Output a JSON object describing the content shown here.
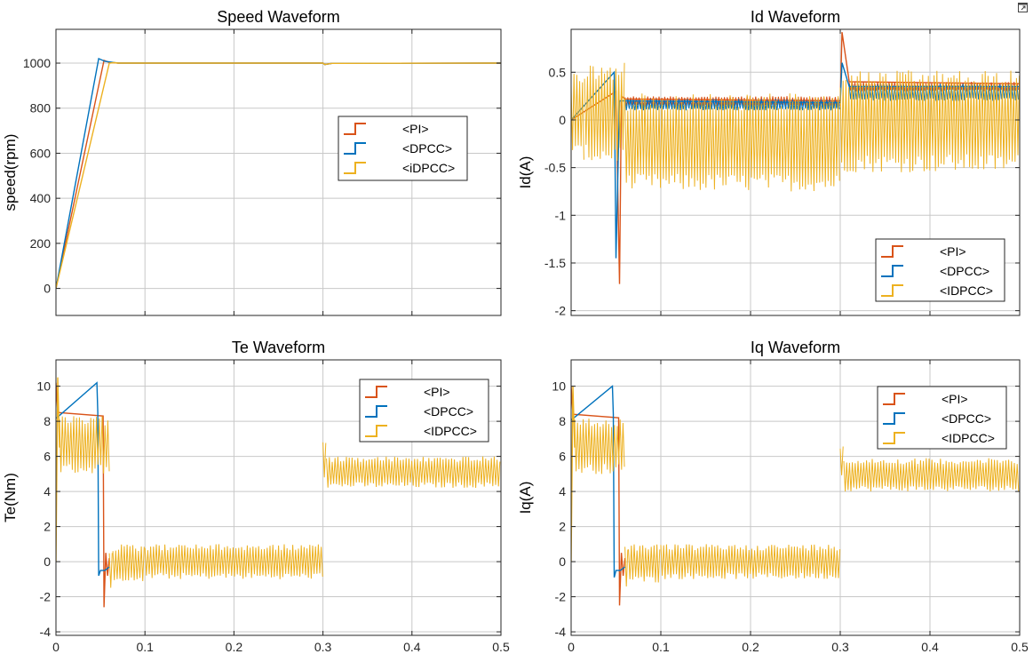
{
  "window": {
    "undock_icon": "undock-icon"
  },
  "colors": {
    "PI": "#D95319",
    "DPCC": "#0072BD",
    "IDPCC": "#EDB120",
    "grid": "#c8c8c8",
    "axis": "#262626"
  },
  "chart_data": [
    {
      "id": "speed",
      "type": "line",
      "title": "Speed Waveform",
      "xlabel": "",
      "ylabel": "speed(rpm)",
      "xlim": [
        0,
        0.5
      ],
      "ylim": [
        -120,
        1150
      ],
      "xticks": [
        0,
        0.1,
        0.2,
        0.3,
        0.4,
        0.5
      ],
      "xtick_labels": [],
      "yticks": [
        0,
        200,
        400,
        600,
        800,
        1000
      ],
      "ytick_labels": [
        "0",
        "200",
        "400",
        "600",
        "800",
        "1000"
      ],
      "legend": {
        "position": "center-right",
        "entries": [
          "<PI>",
          "<DPCC>",
          "<iDPCC>"
        ]
      },
      "series": [
        {
          "name": "<PI>",
          "color_key": "PI",
          "x": [
            0,
            0.054,
            0.06,
            0.07,
            0.3,
            0.302,
            0.31,
            0.5
          ],
          "y": [
            0,
            1012,
            1003,
            1000,
            1000,
            994,
            999,
            1000
          ]
        },
        {
          "name": "<DPCC>",
          "color_key": "DPCC",
          "x": [
            0,
            0.048,
            0.055,
            0.07,
            0.3,
            0.302,
            0.31,
            0.5
          ],
          "y": [
            0,
            1020,
            1008,
            1000,
            1000,
            994,
            999,
            1000
          ]
        },
        {
          "name": "<iDPCC>",
          "color_key": "IDPCC",
          "x": [
            0,
            0.06,
            0.065,
            0.07,
            0.3,
            0.302,
            0.31,
            0.5
          ],
          "y": [
            0,
            1000,
            1002,
            1000,
            1000,
            994,
            999,
            1000
          ]
        }
      ]
    },
    {
      "id": "id",
      "type": "line",
      "title": "Id Waveform",
      "xlabel": "",
      "ylabel": "Id(A)",
      "xlim": [
        0,
        0.5
      ],
      "ylim": [
        -2.05,
        0.95
      ],
      "xticks": [
        0,
        0.1,
        0.2,
        0.3,
        0.4,
        0.5
      ],
      "xtick_labels": [],
      "yticks": [
        -2,
        -1.5,
        -1,
        -0.5,
        0,
        0.5
      ],
      "ytick_labels": [
        "-2",
        "-1.5",
        "-1",
        "-0.5",
        "0",
        "0.5"
      ],
      "legend": {
        "position": "bottom-right",
        "entries": [
          "<PI>",
          "<DPCC>",
          "<IDPCC>"
        ]
      },
      "series": [
        {
          "name": "<PI>",
          "color_key": "PI",
          "x": [
            0,
            0.05,
            0.054,
            0.056,
            0.06,
            0.3,
            0.302,
            0.31,
            0.5
          ],
          "y": [
            0,
            0.3,
            -1.72,
            0.25,
            0.22,
            0.2,
            0.92,
            0.4,
            0.38
          ],
          "band": [
            [
              0.06,
              0.3,
              0.14,
              0.25
            ],
            [
              0.31,
              0.5,
              0.3,
              0.4
            ]
          ]
        },
        {
          "name": "<DPCC>",
          "color_key": "DPCC",
          "x": [
            0,
            0.048,
            0.05,
            0.054,
            0.06,
            0.3,
            0.302,
            0.31,
            0.5
          ],
          "y": [
            0,
            0.5,
            -1.45,
            0.2,
            0.2,
            0.18,
            0.6,
            0.35,
            0.35
          ],
          "band": [
            [
              0.06,
              0.3,
              0.1,
              0.22
            ],
            [
              0.31,
              0.5,
              0.2,
              0.38
            ]
          ]
        },
        {
          "name": "<IDPCC>",
          "color_key": "IDPCC",
          "x": [
            0,
            0.5
          ],
          "y": [
            0,
            0
          ],
          "band": [
            [
              0,
              0.015,
              -0.42,
              0.52
            ],
            [
              0.015,
              0.06,
              -0.45,
              0.6
            ],
            [
              0.06,
              0.3,
              -0.75,
              0.28
            ],
            [
              0.3,
              0.5,
              -0.55,
              0.52
            ]
          ]
        }
      ]
    },
    {
      "id": "te",
      "type": "line",
      "title": "Te Waveform",
      "xlabel": "",
      "ylabel": "Te(Nm)",
      "xlim": [
        0,
        0.5
      ],
      "ylim": [
        -4.2,
        11.5
      ],
      "xticks": [
        0,
        0.1,
        0.2,
        0.3,
        0.4,
        0.5
      ],
      "xtick_labels": [
        "0",
        "0.1",
        "0.2",
        "0.3",
        "0.4",
        "0.5"
      ],
      "yticks": [
        -4,
        -2,
        0,
        2,
        4,
        6,
        8,
        10
      ],
      "ytick_labels": [
        "-4",
        "-2",
        "0",
        "2",
        "4",
        "6",
        "8",
        "10"
      ],
      "legend": {
        "position": "top-right",
        "entries": [
          "<PI>",
          "<DPCC>",
          "<IDPCC>"
        ]
      },
      "series": [
        {
          "name": "<PI>",
          "color_key": "PI",
          "x": [
            0,
            0.002,
            0.053,
            0.054,
            0.056,
            0.058,
            0.06
          ],
          "y": [
            10.2,
            8.5,
            8.3,
            -2.6,
            0.5,
            -0.8,
            0.2
          ]
        },
        {
          "name": "<DPCC>",
          "color_key": "DPCC",
          "x": [
            0,
            0.001,
            0.046,
            0.047,
            0.048,
            0.05,
            0.055,
            0.06
          ],
          "y": [
            8.2,
            8.2,
            10.2,
            8.5,
            -0.8,
            -0.5,
            -0.5,
            -0.3
          ]
        },
        {
          "name": "<IDPCC>",
          "color_key": "IDPCC",
          "x": [
            0,
            0.002,
            0.004
          ],
          "y": [
            0,
            10.5,
            6.5
          ],
          "band": [
            [
              0.004,
              0.06,
              5.0,
              8.3
            ],
            [
              0.06,
              0.064,
              -1.9,
              1.0
            ],
            [
              0.064,
              0.1,
              -1.3,
              1.0
            ],
            [
              0.1,
              0.3,
              -1.0,
              1.0
            ],
            [
              0.3,
              0.304,
              4.6,
              6.8
            ],
            [
              0.304,
              0.5,
              4.2,
              6.0
            ]
          ]
        }
      ]
    },
    {
      "id": "iq",
      "type": "line",
      "title": "Iq Waveform",
      "xlabel": "",
      "ylabel": "Iq(A)",
      "xlim": [
        0,
        0.5
      ],
      "ylim": [
        -4.2,
        11.5
      ],
      "xticks": [
        0,
        0.1,
        0.2,
        0.3,
        0.4,
        0.5
      ],
      "xtick_labels": [
        "0",
        "0.1",
        "0.2",
        "0.3",
        "0.4",
        "0.5"
      ],
      "yticks": [
        -4,
        -2,
        0,
        2,
        4,
        6,
        8,
        10
      ],
      "ytick_labels": [
        "-4",
        "-2",
        "0",
        "2",
        "4",
        "6",
        "8",
        "10"
      ],
      "legend": {
        "position": "top-right",
        "entries": [
          "<PI>",
          "<DPCC>",
          "<IDPCC>"
        ]
      },
      "series": [
        {
          "name": "<PI>",
          "color_key": "PI",
          "x": [
            0,
            0.002,
            0.053,
            0.054,
            0.056,
            0.058,
            0.06
          ],
          "y": [
            10.0,
            8.4,
            8.2,
            -2.5,
            0.5,
            -0.8,
            0.2
          ]
        },
        {
          "name": "<DPCC>",
          "color_key": "DPCC",
          "x": [
            0,
            0.001,
            0.046,
            0.047,
            0.048,
            0.05,
            0.055,
            0.06
          ],
          "y": [
            8.1,
            8.1,
            10.0,
            8.4,
            -0.9,
            -0.5,
            -0.5,
            -0.3
          ]
        },
        {
          "name": "<IDPCC>",
          "color_key": "IDPCC",
          "x": [
            0,
            0.002,
            0.004
          ],
          "y": [
            0,
            10.0,
            6.5
          ],
          "band": [
            [
              0.004,
              0.06,
              5.0,
              8.2
            ],
            [
              0.06,
              0.064,
              -1.8,
              1.0
            ],
            [
              0.064,
              0.1,
              -1.2,
              1.0
            ],
            [
              0.1,
              0.3,
              -1.0,
              1.0
            ],
            [
              0.3,
              0.304,
              4.6,
              6.7
            ],
            [
              0.304,
              0.5,
              4.0,
              5.9
            ]
          ]
        }
      ]
    }
  ]
}
